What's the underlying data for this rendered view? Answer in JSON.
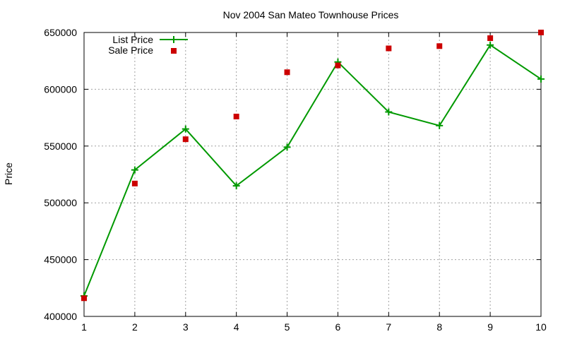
{
  "chart_data": {
    "type": "line",
    "title": "Nov 2004 San Mateo Townhouse Prices",
    "xlabel": "",
    "ylabel": "Price",
    "x": [
      1,
      2,
      3,
      4,
      5,
      6,
      7,
      8,
      9,
      10
    ],
    "xlim": [
      1,
      10
    ],
    "ylim": [
      400000,
      650000
    ],
    "xticks": [
      "1",
      "2",
      "3",
      "4",
      "5",
      "6",
      "7",
      "8",
      "9",
      "10"
    ],
    "yticks": [
      "400000",
      "450000",
      "500000",
      "550000",
      "600000",
      "650000"
    ],
    "grid": true,
    "legend_position": "top-left",
    "series": [
      {
        "name": "List Price",
        "style": "lines+points",
        "marker": "plus",
        "color": "#009900",
        "values": [
          418000,
          529000,
          565000,
          515000,
          549000,
          624000,
          580000,
          568000,
          639000,
          609000
        ]
      },
      {
        "name": "Sale Price",
        "style": "points",
        "marker": "square",
        "color": "#cc0000",
        "values": [
          416000,
          517000,
          556000,
          576000,
          615000,
          621000,
          636000,
          638000,
          645000,
          650000
        ]
      }
    ]
  }
}
